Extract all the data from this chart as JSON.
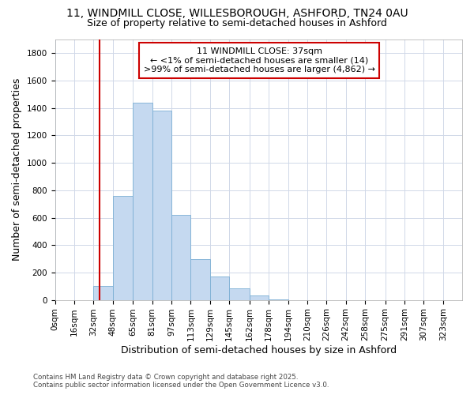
{
  "title_line1": "11, WINDMILL CLOSE, WILLESBOROUGH, ASHFORD, TN24 0AU",
  "title_line2": "Size of property relative to semi-detached houses in Ashford",
  "xlabel": "Distribution of semi-detached houses by size in Ashford",
  "ylabel": "Number of semi-detached properties",
  "annotation_title": "11 WINDMILL CLOSE: 37sqm",
  "annotation_line1": "← <1% of semi-detached houses are smaller (14)",
  "annotation_line2": ">99% of semi-detached houses are larger (4,862) →",
  "property_size_sqm": 37,
  "bin_edges": [
    0,
    16,
    32,
    48,
    65,
    81,
    97,
    113,
    129,
    145,
    162,
    178,
    194,
    210,
    226,
    242,
    258,
    275,
    291,
    307,
    323,
    339
  ],
  "bar_heights": [
    0,
    0,
    100,
    760,
    1440,
    1380,
    620,
    300,
    170,
    85,
    30,
    5,
    0,
    0,
    0,
    0,
    0,
    0,
    0,
    0,
    0
  ],
  "bar_color": "#c5d9f0",
  "bar_edge_color": "#7bafd4",
  "vline_color": "#cc0000",
  "vline_x": 37,
  "ylim": [
    0,
    1900
  ],
  "xlim": [
    0,
    339
  ],
  "yticks": [
    0,
    200,
    400,
    600,
    800,
    1000,
    1200,
    1400,
    1600,
    1800
  ],
  "xtick_labels": [
    "0sqm",
    "16sqm",
    "32sqm",
    "48sqm",
    "65sqm",
    "81sqm",
    "97sqm",
    "113sqm",
    "129sqm",
    "145sqm",
    "162sqm",
    "178sqm",
    "194sqm",
    "210sqm",
    "226sqm",
    "242sqm",
    "258sqm",
    "275sqm",
    "291sqm",
    "307sqm",
    "323sqm"
  ],
  "grid_color": "#d0d8e8",
  "bg_color": "#ffffff",
  "plot_bg_color": "#ffffff",
  "footer_line1": "Contains HM Land Registry data © Crown copyright and database right 2025.",
  "footer_line2": "Contains public sector information licensed under the Open Government Licence v3.0.",
  "title_fontsize": 10,
  "subtitle_fontsize": 9,
  "axis_label_fontsize": 9,
  "tick_fontsize": 7.5,
  "annotation_box_color": "#ffffff",
  "annotation_box_edge": "#cc0000",
  "annotation_fontsize": 8
}
